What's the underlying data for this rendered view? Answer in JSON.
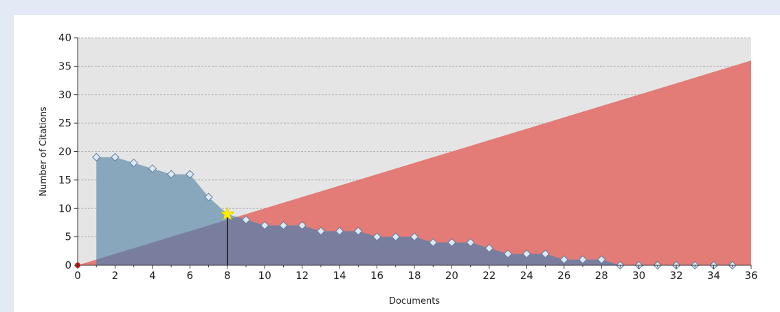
{
  "chart_data": {
    "type": "area",
    "xlabel": "Documents",
    "ylabel": "Number of Citations",
    "xlim": [
      0,
      36
    ],
    "ylim": [
      0,
      40
    ],
    "x_ticks": [
      "0",
      "2",
      "4",
      "6",
      "8",
      "10",
      "12",
      "14",
      "16",
      "18",
      "20",
      "22",
      "24",
      "26",
      "28",
      "30",
      "32",
      "34",
      "36"
    ],
    "y_ticks": [
      "0",
      "5",
      "10",
      "15",
      "20",
      "25",
      "30",
      "35",
      "40"
    ],
    "grid": "horizontal dashed",
    "series": [
      {
        "kind": "citations",
        "x": [
          1,
          2,
          3,
          4,
          5,
          6,
          7,
          8,
          9,
          10,
          11,
          12,
          13,
          14,
          15,
          16,
          17,
          18,
          19,
          20,
          21,
          22,
          23,
          24,
          25,
          26,
          27,
          28,
          29,
          30,
          31,
          32,
          33,
          34,
          35
        ],
        "values": [
          19,
          19,
          18,
          17,
          16,
          16,
          12,
          9,
          8,
          7,
          7,
          7,
          6,
          6,
          6,
          5,
          5,
          5,
          4,
          4,
          4,
          3,
          2,
          2,
          2,
          1,
          1,
          1,
          0,
          0,
          0,
          0,
          0,
          0,
          0
        ]
      },
      {
        "kind": "identity-line",
        "x": [
          0,
          36
        ],
        "values": [
          0,
          36
        ]
      }
    ],
    "h_index_point": {
      "x": 8,
      "y": 9
    },
    "origin_point": {
      "x": 0,
      "y": 0
    },
    "colors": {
      "plot_background": "#e5e5e5",
      "identity_area": "#e37b76",
      "citations_area": "#88a6bc",
      "overlap_area": "#797e9f",
      "marker_fill": "#dde9f4",
      "marker_stroke": "#5e7d99",
      "star": "#ffee00",
      "origin_dot": "#dd1111"
    }
  }
}
